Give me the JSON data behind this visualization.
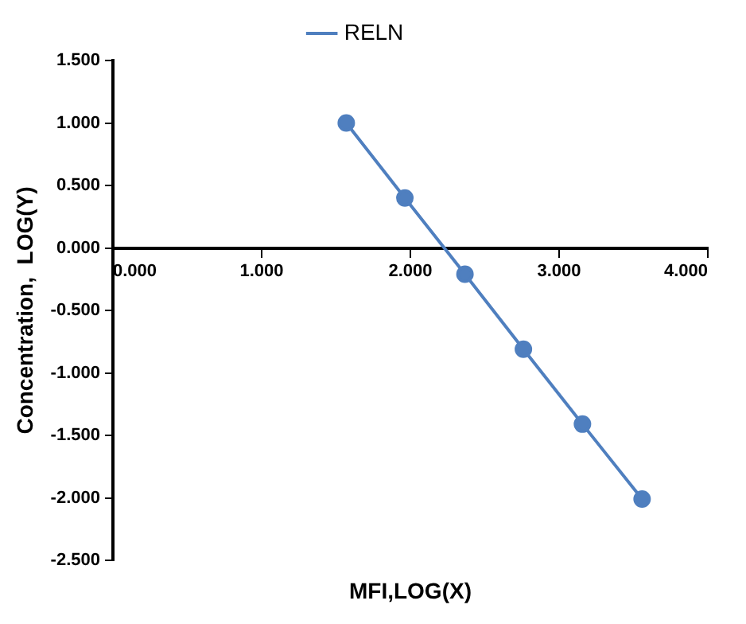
{
  "chart_data": {
    "type": "line",
    "xlabel": "MFI,LOG(X)",
    "ylabel": "Concentration,  LOG(Y)",
    "series": [
      {
        "name": "RELN",
        "color": "#4f7fbf",
        "x": [
          1.569,
          1.963,
          2.367,
          2.76,
          3.157,
          3.558
        ],
        "values": [
          1.0,
          0.4,
          -0.21,
          -0.81,
          -1.41,
          -2.01
        ]
      }
    ],
    "xlim": [
      0,
      4
    ],
    "xticks": [
      {
        "value": 0,
        "label": "0.000"
      },
      {
        "value": 1,
        "label": "1.000"
      },
      {
        "value": 2,
        "label": "2.000"
      },
      {
        "value": 3,
        "label": "3.000"
      },
      {
        "value": 4,
        "label": "4.000"
      }
    ],
    "ylim": [
      -2.5,
      1.5
    ],
    "yticks": [
      {
        "value": -2.5,
        "label": "-2.500"
      },
      {
        "value": -2,
        "label": "-2.000"
      },
      {
        "value": -1.5,
        "label": "-1.500"
      },
      {
        "value": -1,
        "label": "-1.000"
      },
      {
        "value": -0.5,
        "label": "-0.500"
      },
      {
        "value": 0,
        "label": "0.000"
      },
      {
        "value": 0.5,
        "label": "0.500"
      },
      {
        "value": 1,
        "label": "1.000"
      },
      {
        "value": 1.5,
        "label": "1.500"
      }
    ],
    "grid": false,
    "legend": "top",
    "marker": "circle",
    "line_style": "solid"
  }
}
